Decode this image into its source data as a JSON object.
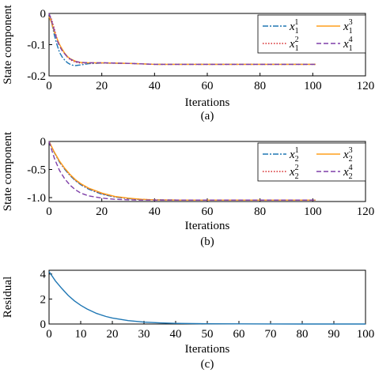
{
  "chart_data": [
    {
      "type": "line",
      "caption": "(a)",
      "xlabel": "Iterations",
      "ylabel": "State component",
      "xlim": [
        0,
        120
      ],
      "ylim": [
        -0.2,
        0
      ],
      "xticks": [
        "0",
        "20",
        "40",
        "60",
        "80",
        "100",
        "120"
      ],
      "xtick_values": [
        0,
        20,
        40,
        60,
        80,
        100,
        120
      ],
      "yticks": [
        "0",
        "-0.1",
        "-0.2"
      ],
      "ytick_values": [
        0,
        -0.1,
        -0.2
      ],
      "legend_position": "top-right",
      "series": [
        {
          "name": "x",
          "sub": "1",
          "sup": "1",
          "color": "#1f77b4",
          "dash": "7,2,2,2",
          "x": [
            0,
            1,
            2,
            3,
            4,
            5,
            6,
            7,
            8,
            9,
            10,
            12,
            15,
            20,
            30,
            40,
            60,
            80,
            101
          ],
          "y": [
            0,
            -0.03,
            -0.07,
            -0.1,
            -0.125,
            -0.14,
            -0.15,
            -0.158,
            -0.163,
            -0.166,
            -0.167,
            -0.165,
            -0.161,
            -0.159,
            -0.16,
            -0.163,
            -0.163,
            -0.163,
            -0.163
          ]
        },
        {
          "name": "x",
          "sub": "1",
          "sup": "2",
          "color": "#d62728",
          "dash": "1.5,2",
          "x": [
            0,
            1,
            2,
            3,
            4,
            5,
            6,
            7,
            8,
            10,
            12,
            15,
            20,
            30,
            40,
            60,
            80,
            101
          ],
          "y": [
            0,
            -0.02,
            -0.05,
            -0.08,
            -0.1,
            -0.115,
            -0.13,
            -0.14,
            -0.148,
            -0.156,
            -0.159,
            -0.159,
            -0.159,
            -0.16,
            -0.163,
            -0.163,
            -0.163,
            -0.163
          ]
        },
        {
          "name": "x",
          "sub": "1",
          "sup": "3",
          "color": "#ff9f1c",
          "dash": "",
          "x": [
            0,
            1,
            2,
            3,
            4,
            5,
            6,
            7,
            8,
            10,
            12,
            15,
            20,
            30,
            40,
            60,
            80,
            101
          ],
          "y": [
            -0.01,
            -0.03,
            -0.06,
            -0.08,
            -0.1,
            -0.115,
            -0.128,
            -0.138,
            -0.145,
            -0.153,
            -0.157,
            -0.158,
            -0.158,
            -0.16,
            -0.163,
            -0.163,
            -0.163,
            -0.163
          ]
        },
        {
          "name": "x",
          "sub": "1",
          "sup": "4",
          "color": "#7e3fa8",
          "dash": "6,3",
          "x": [
            0,
            1,
            2,
            3,
            4,
            5,
            6,
            7,
            8,
            10,
            12,
            15,
            20,
            30,
            40,
            60,
            80,
            101
          ],
          "y": [
            0,
            -0.025,
            -0.055,
            -0.085,
            -0.105,
            -0.12,
            -0.13,
            -0.14,
            -0.146,
            -0.154,
            -0.157,
            -0.158,
            -0.158,
            -0.16,
            -0.163,
            -0.163,
            -0.163,
            -0.163
          ]
        }
      ]
    },
    {
      "type": "line",
      "caption": "(b)",
      "xlabel": "Iterations",
      "ylabel": "State component",
      "xlim": [
        0,
        120
      ],
      "ylim": [
        -1.07,
        0
      ],
      "xticks": [
        "0",
        "20",
        "40",
        "60",
        "80",
        "100",
        "120"
      ],
      "xtick_values": [
        0,
        20,
        40,
        60,
        80,
        100,
        120
      ],
      "yticks": [
        "0",
        "-0.5",
        "-1.0"
      ],
      "ytick_values": [
        0,
        -0.5,
        -1.0
      ],
      "legend_position": "top-right",
      "series": [
        {
          "name": "x",
          "sub": "2",
          "sup": "1",
          "color": "#1f77b4",
          "dash": "7,2,2,2",
          "x": [
            0,
            2,
            4,
            6,
            8,
            10,
            12,
            15,
            20,
            25,
            30,
            35,
            40,
            50,
            60,
            80,
            101
          ],
          "y": [
            0,
            -0.2,
            -0.37,
            -0.5,
            -0.61,
            -0.7,
            -0.77,
            -0.85,
            -0.94,
            -0.99,
            -1.02,
            -1.035,
            -1.04,
            -1.045,
            -1.045,
            -1.045,
            -1.045
          ]
        },
        {
          "name": "x",
          "sub": "2",
          "sup": "2",
          "color": "#d62728",
          "dash": "1.5,2",
          "x": [
            0,
            2,
            4,
            6,
            8,
            10,
            12,
            15,
            20,
            25,
            30,
            35,
            40,
            50,
            60,
            80,
            101
          ],
          "y": [
            0,
            -0.19,
            -0.36,
            -0.49,
            -0.6,
            -0.69,
            -0.76,
            -0.84,
            -0.93,
            -0.985,
            -1.015,
            -1.03,
            -1.04,
            -1.045,
            -1.045,
            -1.045,
            -1.045
          ]
        },
        {
          "name": "x",
          "sub": "2",
          "sup": "3",
          "color": "#ff9f1c",
          "dash": "",
          "x": [
            0,
            2,
            4,
            6,
            8,
            10,
            12,
            15,
            20,
            25,
            30,
            35,
            40,
            50,
            60,
            80,
            101
          ],
          "y": [
            0,
            -0.19,
            -0.35,
            -0.48,
            -0.59,
            -0.68,
            -0.75,
            -0.83,
            -0.92,
            -0.98,
            -1.01,
            -1.03,
            -1.04,
            -1.045,
            -1.045,
            -1.045,
            -1.045
          ]
        },
        {
          "name": "x",
          "sub": "2",
          "sup": "4",
          "color": "#7e3fa8",
          "dash": "6,3",
          "x": [
            0,
            2,
            4,
            6,
            8,
            10,
            12,
            15,
            20,
            25,
            30,
            35,
            40,
            50,
            60,
            80,
            101
          ],
          "y": [
            0,
            -0.3,
            -0.52,
            -0.67,
            -0.78,
            -0.86,
            -0.92,
            -0.97,
            -1.01,
            -1.03,
            -1.04,
            -1.045,
            -1.045,
            -1.045,
            -1.045,
            -1.045,
            -1.045
          ]
        }
      ]
    },
    {
      "type": "line",
      "caption": "(c)",
      "xlabel": "Iterations",
      "ylabel": "Residual",
      "xlim": [
        0,
        100
      ],
      "ylim": [
        0,
        4.3
      ],
      "xticks": [
        "0",
        "10",
        "20",
        "30",
        "40",
        "50",
        "60",
        "70",
        "80",
        "90",
        "100"
      ],
      "xtick_values": [
        0,
        10,
        20,
        30,
        40,
        50,
        60,
        70,
        80,
        90,
        100
      ],
      "yticks": [
        "0",
        "2",
        "4"
      ],
      "ytick_values": [
        0,
        2,
        4
      ],
      "series": [
        {
          "color": "#1f77b4",
          "dash": "",
          "x": [
            0,
            2,
            4,
            6,
            8,
            10,
            12,
            15,
            18,
            20,
            25,
            30,
            35,
            40,
            50,
            60,
            70,
            80,
            90,
            100
          ],
          "y": [
            4.2,
            3.45,
            2.85,
            2.3,
            1.85,
            1.5,
            1.2,
            0.85,
            0.6,
            0.48,
            0.27,
            0.15,
            0.09,
            0.05,
            0.02,
            0.01,
            0.005,
            0.003,
            0.002,
            0.001
          ]
        }
      ]
    }
  ]
}
